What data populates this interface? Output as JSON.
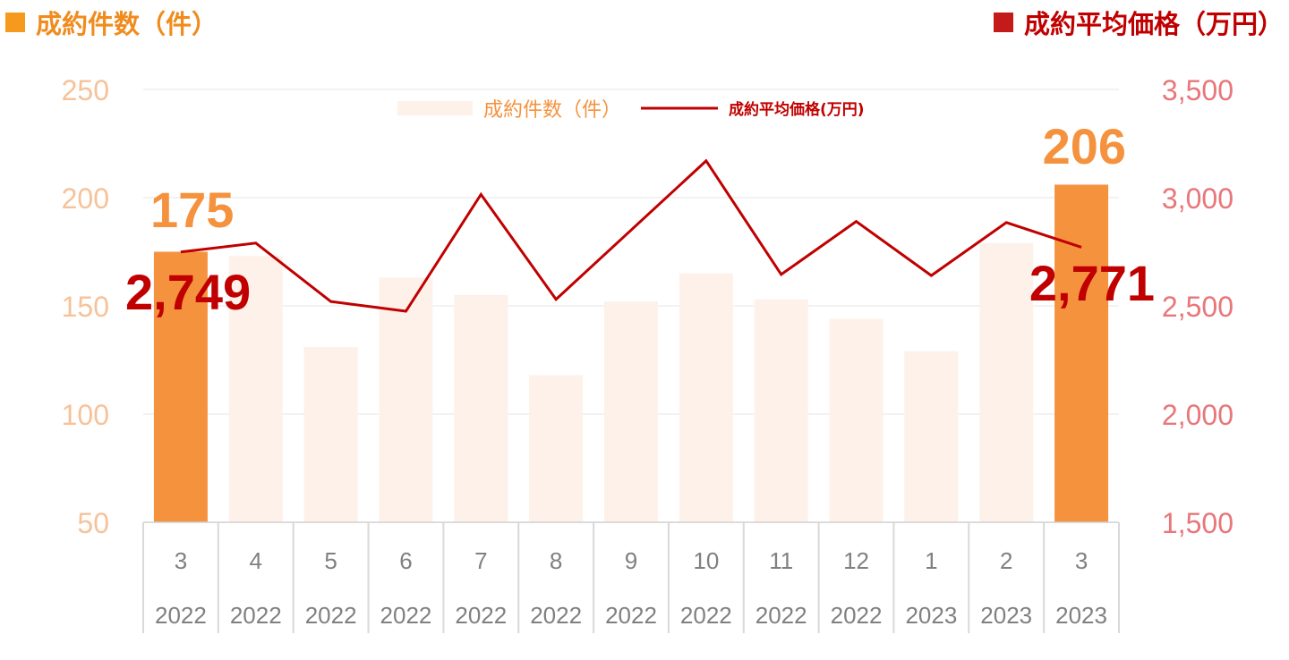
{
  "header": {
    "left_label": "成約件数（件）",
    "right_label": "成約平均価格（万円）"
  },
  "colors": {
    "left_marker": "#f59a1c",
    "right_marker": "#c41a1a",
    "bar_highlight": "#f5923e",
    "bar_faded": "#fdf1ea",
    "line": "#c00000",
    "left_axis_text": "#f6c29a",
    "right_axis_text": "#e8767a",
    "grid": "#e6e6e6",
    "category_text": "#808080"
  },
  "chart_data": {
    "type": "bar+line",
    "categories": [
      {
        "month": "3",
        "year": "2022"
      },
      {
        "month": "4",
        "year": "2022"
      },
      {
        "month": "5",
        "year": "2022"
      },
      {
        "month": "6",
        "year": "2022"
      },
      {
        "month": "7",
        "year": "2022"
      },
      {
        "month": "8",
        "year": "2022"
      },
      {
        "month": "9",
        "year": "2022"
      },
      {
        "month": "10",
        "year": "2022"
      },
      {
        "month": "11",
        "year": "2022"
      },
      {
        "month": "12",
        "year": "2022"
      },
      {
        "month": "1",
        "year": "2023"
      },
      {
        "month": "2",
        "year": "2023"
      },
      {
        "month": "3",
        "year": "2023"
      }
    ],
    "bar_series": {
      "name": "成約件数（件）",
      "values": [
        175,
        173,
        131,
        163,
        155,
        118,
        152,
        165,
        153,
        144,
        129,
        179,
        206
      ],
      "highlight_indices": [
        0,
        12
      ]
    },
    "line_series": {
      "name": "成約平均価格(万円)",
      "values": [
        2749,
        2790,
        2520,
        2475,
        3015,
        2530,
        2850,
        3170,
        2645,
        2890,
        2640,
        2885,
        2771
      ]
    },
    "left_axis": {
      "min": 50,
      "max": 250,
      "ticks": [
        "50",
        "100",
        "150",
        "200",
        "250"
      ]
    },
    "right_axis": {
      "min": 1500,
      "max": 3500,
      "ticks": [
        "1,500",
        "2,000",
        "2,500",
        "3,000",
        "3,500"
      ]
    },
    "data_labels": {
      "bar_first": "175",
      "bar_last": "206",
      "line_first": "2,749",
      "line_last": "2,771"
    },
    "legend": {
      "bar_label": "成約件数（件）",
      "line_label": "成約平均価格(万円)",
      "position": "top-center"
    },
    "grid": true
  }
}
